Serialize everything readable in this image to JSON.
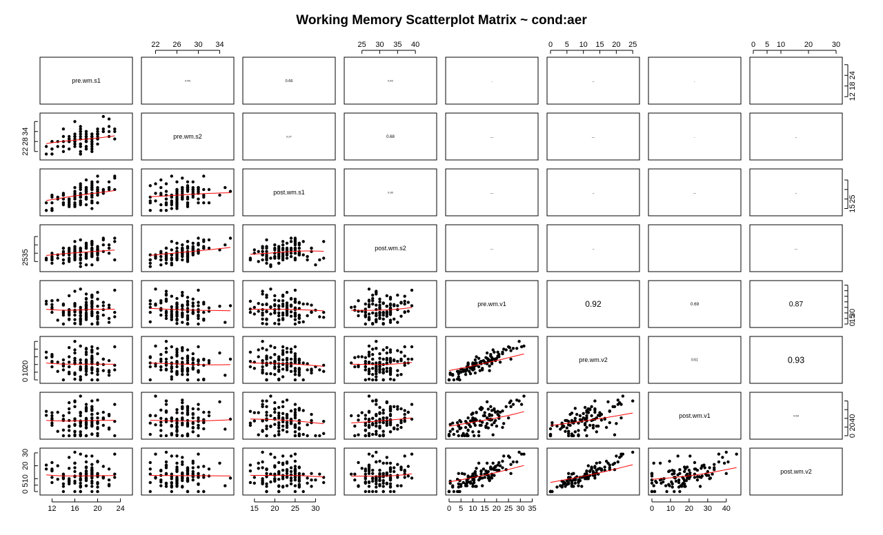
{
  "chart_data": {
    "type": "scatter",
    "title": "Working Memory Scatterplot Matrix ~ cond:aer",
    "variables": [
      "pre.wm.s1",
      "pre.wm.s2",
      "post.wm.s1",
      "post.wm.s2",
      "pre.wm.v1",
      "pre.wm.v2",
      "post.wm.v1",
      "post.wm.v2"
    ],
    "axis_ranges": [
      [
        10.5,
        25.5
      ],
      [
        20,
        36
      ],
      [
        13,
        34
      ],
      [
        21,
        45
      ],
      [
        0,
        36
      ],
      [
        0,
        26
      ],
      [
        0,
        46
      ],
      [
        0,
        31
      ]
    ],
    "tick_values": [
      [
        12,
        16,
        20,
        24
      ],
      [
        22,
        26,
        30,
        34
      ],
      [
        15,
        20,
        25,
        30
      ],
      [
        25,
        30,
        35,
        40
      ],
      [
        0,
        5,
        10,
        15,
        20,
        25,
        30,
        35
      ],
      [
        0,
        5,
        10,
        15,
        20,
        25
      ],
      [
        0,
        10,
        20,
        30,
        40
      ],
      [
        0,
        5,
        10,
        20,
        30
      ]
    ],
    "tick_labels": {
      "top": [
        {
          "var": 1,
          "ticks": [
            "22",
            "26",
            "30",
            "34"
          ]
        },
        {
          "var": 3,
          "ticks": [
            "25",
            "30",
            "35",
            "40"
          ]
        },
        {
          "var": 5,
          "ticks": [
            "0",
            "5",
            "10",
            "15",
            "20",
            "25"
          ]
        },
        {
          "var": 7,
          "ticks": [
            "0",
            "5",
            "10",
            "20",
            "30"
          ]
        }
      ],
      "bottom": [
        {
          "var": 0,
          "ticks": [
            "12",
            "16",
            "20",
            "24"
          ]
        },
        {
          "var": 2,
          "ticks": [
            "15",
            "20",
            "25",
            "30"
          ]
        },
        {
          "var": 4,
          "ticks": [
            "0",
            "5",
            "10",
            "15",
            "20",
            "25",
            "30",
            "35"
          ]
        },
        {
          "var": 6,
          "ticks": [
            "0",
            "10",
            "20",
            "30",
            "40"
          ]
        }
      ],
      "left": [
        {
          "var": 1,
          "ticks": [
            "22",
            "28",
            "34"
          ]
        },
        {
          "var": 3,
          "ticks": [
            "25",
            "35"
          ]
        },
        {
          "var": 5,
          "ticks": [
            "0",
            "10",
            "20"
          ]
        },
        {
          "var": 7,
          "ticks": [
            "0",
            "5",
            "10",
            "20",
            "30"
          ]
        }
      ],
      "right": [
        {
          "var": 0,
          "ticks": [
            "12",
            "18",
            "24"
          ]
        },
        {
          "var": 2,
          "ticks": [
            "15",
            "25"
          ]
        },
        {
          "var": 4,
          "ticks": [
            "0",
            "15",
            "30"
          ]
        },
        {
          "var": 6,
          "ticks": [
            "0",
            "20",
            "40"
          ]
        }
      ]
    },
    "correlations": [
      {
        "row": 0,
        "col": 1,
        "label": "0.45"
      },
      {
        "row": 0,
        "col": 2,
        "label": "0.66"
      },
      {
        "row": 0,
        "col": 3,
        "label": "0.42"
      },
      {
        "row": 0,
        "col": 4,
        "label": "."
      },
      {
        "row": 0,
        "col": 5,
        "label": ".."
      },
      {
        "row": 0,
        "col": 6,
        "label": "."
      },
      {
        "row": 1,
        "col": 2,
        "label": "0.27"
      },
      {
        "row": 1,
        "col": 3,
        "label": "0.68"
      },
      {
        "row": 1,
        "col": 4,
        "label": "..."
      },
      {
        "row": 1,
        "col": 5,
        "label": "..."
      },
      {
        "row": 1,
        "col": 6,
        "label": "."
      },
      {
        "row": 1,
        "col": 7,
        "label": ".."
      },
      {
        "row": 2,
        "col": 3,
        "label": "0.30"
      },
      {
        "row": 2,
        "col": 4,
        "label": "..."
      },
      {
        "row": 2,
        "col": 5,
        "label": ".."
      },
      {
        "row": 2,
        "col": 6,
        "label": "..."
      },
      {
        "row": 2,
        "col": 7,
        "label": ".."
      },
      {
        "row": 3,
        "col": 4,
        "label": "..."
      },
      {
        "row": 3,
        "col": 5,
        "label": ".."
      },
      {
        "row": 3,
        "col": 7,
        "label": "..."
      },
      {
        "row": 4,
        "col": 5,
        "label": "0.92"
      },
      {
        "row": 4,
        "col": 6,
        "label": "0.69"
      },
      {
        "row": 4,
        "col": 7,
        "label": "0.87"
      },
      {
        "row": 5,
        "col": 6,
        "label": "0.61"
      },
      {
        "row": 5,
        "col": 7,
        "label": "0.93"
      },
      {
        "row": 6,
        "col": 7,
        "label": "0.54"
      }
    ],
    "smoother_color": "#ff0000",
    "point_color": "#000000",
    "grid": false
  }
}
